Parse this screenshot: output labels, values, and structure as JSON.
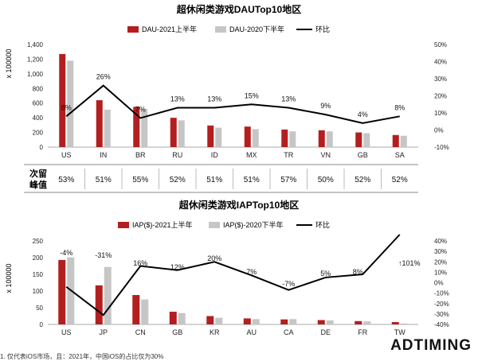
{
  "footnote": "1. 仅代表iOS市场，且：2021年，中国iOS的占比仅为30%",
  "logo": {
    "text_left": "ADTI",
    "text_right": "MING",
    "accent": "#b22222"
  },
  "colors": {
    "current": "#b41e1e",
    "previous": "#c6c6c6",
    "line": "#000000",
    "axis": "#999999"
  },
  "chart_data": [
    {
      "type": "bar",
      "title": "超休闲类游戏DAUTop10地区",
      "ylabel": "x 100000",
      "categories": [
        "US",
        "IN",
        "BR",
        "RU",
        "ID",
        "MX",
        "TR",
        "VN",
        "GB",
        "SA"
      ],
      "series": [
        {
          "name": "DAU-2021上半年",
          "values": [
            1270,
            640,
            550,
            400,
            295,
            280,
            240,
            230,
            200,
            165
          ]
        },
        {
          "name": "DAU-2020下半年",
          "values": [
            1180,
            510,
            520,
            365,
            265,
            245,
            215,
            215,
            190,
            155
          ]
        }
      ],
      "line_series": {
        "name": "环比",
        "values": [
          8,
          26,
          7,
          13,
          13,
          15,
          13,
          9,
          4,
          8
        ]
      },
      "line_labels": [
        "8%",
        "26%",
        "7%",
        "13%",
        "13%",
        "15%",
        "13%",
        "9%",
        "4%",
        "8%"
      ],
      "ylim": [
        0,
        1400
      ],
      "yticks": [
        "0",
        "200",
        "400",
        "600",
        "800",
        "1,000",
        "1,200",
        "1,400"
      ],
      "y2lim": [
        -10,
        50
      ],
      "y2ticks": [
        "-10%",
        "0%",
        "10%",
        "20%",
        "30%",
        "40%",
        "50%"
      ],
      "legend_position": "top",
      "retention": {
        "label": "次留\n峰值",
        "values": [
          "53%",
          "51%",
          "55%",
          "52%",
          "51%",
          "51%",
          "57%",
          "50%",
          "52%",
          "52%"
        ]
      }
    },
    {
      "type": "bar",
      "title": "超休闲类游戏IAPTop10地区",
      "ylabel": "x 100000",
      "categories": [
        "US",
        "JP",
        "CN",
        "GB",
        "KR",
        "AU",
        "CA",
        "DE",
        "FR",
        "TW"
      ],
      "series": [
        {
          "name": "IAP($)-2021上半年",
          "values": [
            193,
            117,
            88,
            38,
            25,
            18,
            15,
            13,
            10,
            7
          ]
        },
        {
          "name": "IAP($)-2020下半年",
          "values": [
            201,
            172,
            75,
            34,
            20,
            16,
            16,
            12,
            9,
            3
          ]
        }
      ],
      "line_series": {
        "name": "环比",
        "values": [
          -4,
          -31,
          16,
          12,
          20,
          7,
          -7,
          5,
          8,
          101
        ]
      },
      "line_labels": [
        "-4%",
        "-31%",
        "16%",
        "12%",
        "20%",
        "7%",
        "-7%",
        "5%",
        "8%",
        "↑101%"
      ],
      "ylim": [
        0,
        250
      ],
      "yticks": [
        "0",
        "50",
        "100",
        "150",
        "200",
        "250"
      ],
      "y2lim": [
        -40,
        40
      ],
      "y2ticks": [
        "-40%",
        "-30%",
        "-20%",
        "-10%",
        "0%",
        "10%",
        "20%",
        "30%",
        "40%"
      ],
      "legend_position": "top"
    }
  ]
}
